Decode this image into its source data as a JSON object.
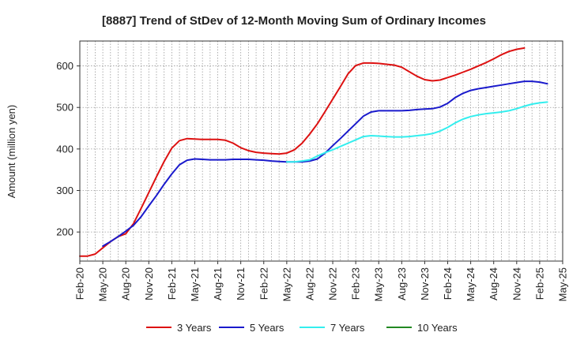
{
  "chart_data": {
    "type": "line",
    "title": "[8887]  Trend of StDev of 12-Month Moving Sum of Ordinary Incomes",
    "xlabel": "",
    "ylabel": "Amount (million yen)",
    "ylim": [
      130,
      660
    ],
    "yticks": [
      200,
      300,
      400,
      500,
      600
    ],
    "grid": true,
    "legend_position": "bottom",
    "x_tick_labels": [
      "Feb-20",
      "May-20",
      "Aug-20",
      "Nov-20",
      "Feb-21",
      "May-21",
      "Aug-21",
      "Nov-21",
      "Feb-22",
      "May-22",
      "Aug-22",
      "Nov-22",
      "Feb-23",
      "May-23",
      "Aug-23",
      "Nov-23",
      "Feb-24",
      "May-24",
      "Aug-24",
      "Nov-24",
      "Feb-25",
      "May-25"
    ],
    "x_start": "Feb-20",
    "x_end": "May-25",
    "series": [
      {
        "name": "3 Years",
        "color": "#dd1111",
        "start": "Feb-20",
        "values": [
          142,
          142,
          147,
          162,
          177,
          189,
          196,
          220,
          257,
          295,
          333,
          370,
          402,
          420,
          425,
          424,
          423,
          423,
          423,
          421,
          414,
          403,
          396,
          392,
          390,
          389,
          388,
          390,
          398,
          414,
          436,
          461,
          490,
          520,
          550,
          581,
          601,
          607,
          607,
          606,
          604,
          602,
          597,
          586,
          575,
          567,
          564,
          566,
          572,
          578,
          585,
          592,
          600,
          608,
          617,
          627,
          635,
          640,
          643
        ],
        "labels": {}
      },
      {
        "name": "5 Years",
        "color": "#1a1acc",
        "start": "May-20",
        "values": [
          166,
          177,
          189,
          202,
          216,
          237,
          263,
          288,
          315,
          340,
          362,
          373,
          376,
          375,
          374,
          374,
          374,
          375,
          375,
          375,
          374,
          373,
          371,
          370,
          369,
          369,
          369,
          371,
          376,
          390,
          408,
          425,
          443,
          461,
          479,
          489,
          492,
          492,
          492,
          492,
          493,
          495,
          496,
          497,
          501,
          510,
          524,
          534,
          541,
          545,
          548,
          551,
          554,
          557,
          560,
          563,
          563,
          561,
          557
        ],
        "labels": {}
      },
      {
        "name": "7 Years",
        "color": "#33eeee",
        "start": "May-22",
        "values": [
          369,
          369,
          371,
          374,
          383,
          391,
          398,
          406,
          414,
          422,
          430,
          432,
          431,
          430,
          429,
          429,
          430,
          432,
          434,
          437,
          443,
          452,
          463,
          472,
          478,
          482,
          485,
          487,
          489,
          492,
          497,
          503,
          508,
          511,
          513
        ],
        "labels": {}
      },
      {
        "name": "10 Years",
        "color": "#228822",
        "start": "Feb-25",
        "values": [],
        "labels": {}
      }
    ]
  }
}
